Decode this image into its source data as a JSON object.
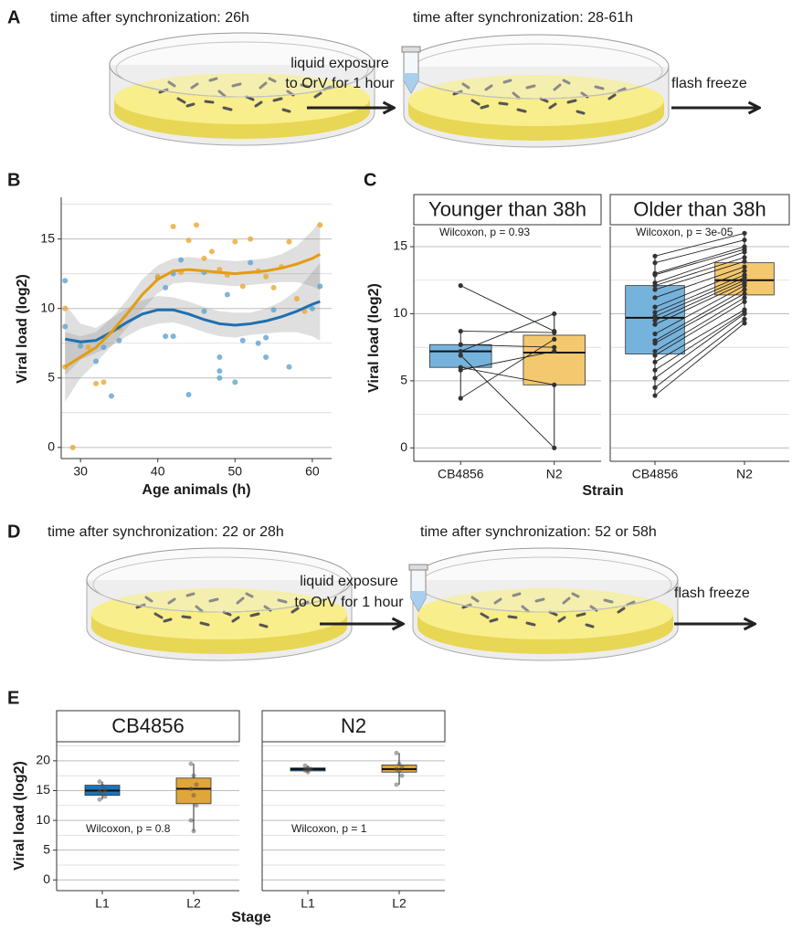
{
  "panel_labels": [
    "A",
    "B",
    "C",
    "D",
    "E"
  ],
  "diagram_a": {
    "start": "time after synchronization: 26h",
    "end": "time after synchronization: 28-61h",
    "exposure": [
      "liquid exposure",
      "to OrV for 1 hour"
    ],
    "freeze": "flash freeze"
  },
  "diagram_d": {
    "start": "time after synchronization: 22 or 28h",
    "end": "time after synchronization: 52 or 58h",
    "exposure": [
      "liquid exposure",
      "to OrV for 1 hour"
    ],
    "freeze": "flash freeze"
  },
  "chart_data": [
    {
      "type": "scatter",
      "xlabel": "Age animals (h)",
      "ylabel": "Viral load (log2)",
      "xlim": [
        27.5,
        62.5
      ],
      "xticks": [
        30,
        40,
        50,
        60
      ],
      "ylim": [
        -0.8,
        18
      ],
      "yticks": [
        0,
        5,
        10,
        15
      ],
      "minor_yticks": [
        2.5,
        7.5,
        12.5,
        17.5
      ],
      "grid": true,
      "series": [
        {
          "color": "#5fa3cf",
          "x": [
            28,
            28,
            30,
            32,
            33,
            34,
            35,
            40,
            41,
            41,
            42,
            42,
            43,
            44,
            46,
            46,
            48,
            48,
            48,
            49,
            50,
            51,
            52,
            53,
            54,
            54,
            55,
            57,
            60,
            61
          ],
          "values": [
            12,
            8.7,
            7.3,
            6.2,
            7.2,
            3.7,
            7.7,
            12.2,
            8,
            11.5,
            8,
            12.5,
            13.5,
            3.8,
            9.8,
            12.6,
            5,
            5.5,
            6.5,
            11,
            4.7,
            7.7,
            13.3,
            7.5,
            7.9,
            6.5,
            9.9,
            5.8,
            10,
            11.6
          ]
        },
        {
          "color": "#eaa732",
          "x": [
            28,
            28,
            29,
            31,
            32,
            33,
            35,
            40,
            42,
            43,
            44,
            45,
            46,
            47,
            48,
            49,
            50,
            51,
            52,
            53,
            54,
            55,
            56,
            57,
            58,
            59,
            61
          ],
          "values": [
            10,
            5.8,
            0,
            7.2,
            4.6,
            4.7,
            8.6,
            12.3,
            15.9,
            12.6,
            14.9,
            16,
            13.6,
            14.1,
            12.8,
            12.4,
            14.8,
            11.6,
            15,
            12.7,
            12.3,
            11.5,
            13,
            14.8,
            10.7,
            9.8,
            16
          ]
        }
      ],
      "smooth": [
        {
          "color": "#1f6fb0",
          "x": [
            28,
            30,
            32,
            34,
            36,
            38,
            40,
            42,
            44,
            46,
            48,
            50,
            52,
            54,
            56,
            58,
            60,
            61
          ],
          "values": [
            7.8,
            7.6,
            7.7,
            8.3,
            9,
            9.6,
            9.9,
            9.9,
            9.6,
            9.2,
            8.9,
            8.8,
            8.9,
            9.1,
            9.4,
            9.8,
            10.3,
            10.5
          ],
          "lower": [
            5.2,
            6.3,
            6.8,
            7.3,
            8,
            8.6,
            8.9,
            9,
            8.7,
            8.3,
            8,
            7.9,
            8.1,
            8.2,
            8.3,
            8.3,
            8,
            7.7
          ],
          "upper": [
            10.3,
            8.9,
            8.6,
            9.3,
            10,
            10.6,
            10.9,
            10.8,
            10.5,
            10.1,
            9.8,
            9.7,
            9.7,
            10,
            10.5,
            11.3,
            12.6,
            13.3
          ]
        },
        {
          "color": "#e39c12",
          "x": [
            28,
            30,
            32,
            34,
            36,
            38,
            40,
            42,
            44,
            46,
            48,
            50,
            52,
            54,
            56,
            58,
            60,
            61
          ],
          "values": [
            5.8,
            6.5,
            7.2,
            8.3,
            9.6,
            11,
            12.1,
            12.7,
            12.8,
            12.7,
            12.6,
            12.5,
            12.6,
            12.7,
            12.9,
            13.2,
            13.6,
            13.9
          ],
          "lower": [
            3.3,
            5,
            6.1,
            7.3,
            8.6,
            9.9,
            11.1,
            11.8,
            11.9,
            11.8,
            11.7,
            11.6,
            11.7,
            11.8,
            11.9,
            11.9,
            11.6,
            11.3
          ],
          "upper": [
            8.3,
            8,
            8.3,
            9.3,
            10.6,
            12.1,
            13.1,
            13.6,
            13.7,
            13.6,
            13.5,
            13.4,
            13.5,
            13.6,
            13.9,
            14.5,
            15.6,
            16.3
          ]
        }
      ]
    },
    {
      "type": "box",
      "xlabel": "Strain",
      "ylabel": "Viral load (log2)",
      "categories": [
        "CB4856",
        "N2"
      ],
      "colors": [
        "#76b3dc",
        "#f4c86e"
      ],
      "ylim": [
        -1,
        16.5
      ],
      "yticks": [
        0,
        5,
        10,
        15
      ],
      "minor_yticks": [
        2.5,
        7.5,
        12.5
      ],
      "grid": true,
      "facets": [
        {
          "title": "Younger than 38h",
          "annotation": "Wilcoxon, p = 0.93",
          "boxes": [
            {
              "q1": 6,
              "median": 7.2,
              "q3": 7.7,
              "whisker_low": 3.7,
              "whisker_high": 8.7
            },
            {
              "q1": 4.7,
              "median": 7.1,
              "q3": 8.4,
              "whisker_low": 0,
              "whisker_high": 10
            }
          ],
          "pairs": [
            [
              12.1,
              8.7
            ],
            [
              8.7,
              8.6
            ],
            [
              7.7,
              7.5
            ],
            [
              7.2,
              10
            ],
            [
              6.9,
              0
            ],
            [
              6,
              4.7
            ],
            [
              5.8,
              7.2
            ],
            [
              3.7,
              8.1
            ]
          ]
        },
        {
          "title": "Older than 38h",
          "annotation": "Wilcoxon, p = 3e-05",
          "boxes": [
            {
              "q1": 7,
              "median": 9.7,
              "q3": 12.1,
              "whisker_low": 3.9,
              "whisker_high": 14.3
            },
            {
              "q1": 11.4,
              "median": 12.5,
              "q3": 13.8,
              "whisker_low": 9.3,
              "whisker_high": 16
            }
          ],
          "pairs": [
            [
              14.3,
              16
            ],
            [
              13.8,
              15.5
            ],
            [
              13,
              15
            ],
            [
              12.9,
              14.8
            ],
            [
              12.3,
              14.6
            ],
            [
              12.1,
              14.2
            ],
            [
              11.8,
              13.9
            ],
            [
              11.2,
              13.5
            ],
            [
              10.5,
              13.2
            ],
            [
              10.1,
              12.9
            ],
            [
              9.8,
              12.7
            ],
            [
              9.5,
              12.5
            ],
            [
              9.2,
              12.3
            ],
            [
              8.5,
              12.1
            ],
            [
              8,
              11.8
            ],
            [
              7.8,
              11.5
            ],
            [
              7.2,
              11.2
            ],
            [
              6.9,
              10.9
            ],
            [
              6.4,
              10.3
            ],
            [
              5.8,
              10.1
            ],
            [
              5.2,
              10
            ],
            [
              4.5,
              9.6
            ],
            [
              3.9,
              9.3
            ]
          ]
        }
      ]
    },
    {
      "type": "box",
      "xlabel": "Stage",
      "ylabel": "Viral load (log2)",
      "categories": [
        "L1",
        "L2"
      ],
      "colors": [
        "#1b75bb",
        "#e0a63a"
      ],
      "ylim": [
        -1.8,
        23.2
      ],
      "yticks": [
        0,
        5,
        10,
        15,
        20
      ],
      "minor_yticks": [
        2.5,
        7.5,
        12.5,
        17.5,
        22.5
      ],
      "grid": true,
      "facets": [
        {
          "title": "CB4856",
          "annotation": "Wilcoxon, p = 0.8",
          "boxes": [
            {
              "q1": 14.2,
              "median": 15,
              "q3": 15.9,
              "whisker_low": 13.5,
              "whisker_high": 16.5,
              "points": [
                16.5,
                15.8,
                15.2,
                14.8,
                14.5,
                14,
                13.5
              ]
            },
            {
              "q1": 12.8,
              "median": 15.3,
              "q3": 17.1,
              "whisker_low": 8.2,
              "whisker_high": 19.5,
              "points": [
                19.5,
                17.5,
                16,
                15.3,
                14.2,
                12.5,
                10,
                8.2
              ]
            }
          ]
        },
        {
          "title": "N2",
          "annotation": "Wilcoxon, p = 1",
          "boxes": [
            {
              "q1": 18.3,
              "median": 18.6,
              "q3": 18.8,
              "whisker_low": 18,
              "whisker_high": 19.2,
              "points": [
                19.2,
                18.8,
                18.6,
                18.4,
                18.1
              ]
            },
            {
              "q1": 18.1,
              "median": 18.6,
              "q3": 19.3,
              "whisker_low": 16,
              "whisker_high": 21.3,
              "points": [
                21.3,
                19.5,
                19,
                18.6,
                18.3,
                17.5,
                16
              ]
            }
          ]
        }
      ]
    }
  ]
}
